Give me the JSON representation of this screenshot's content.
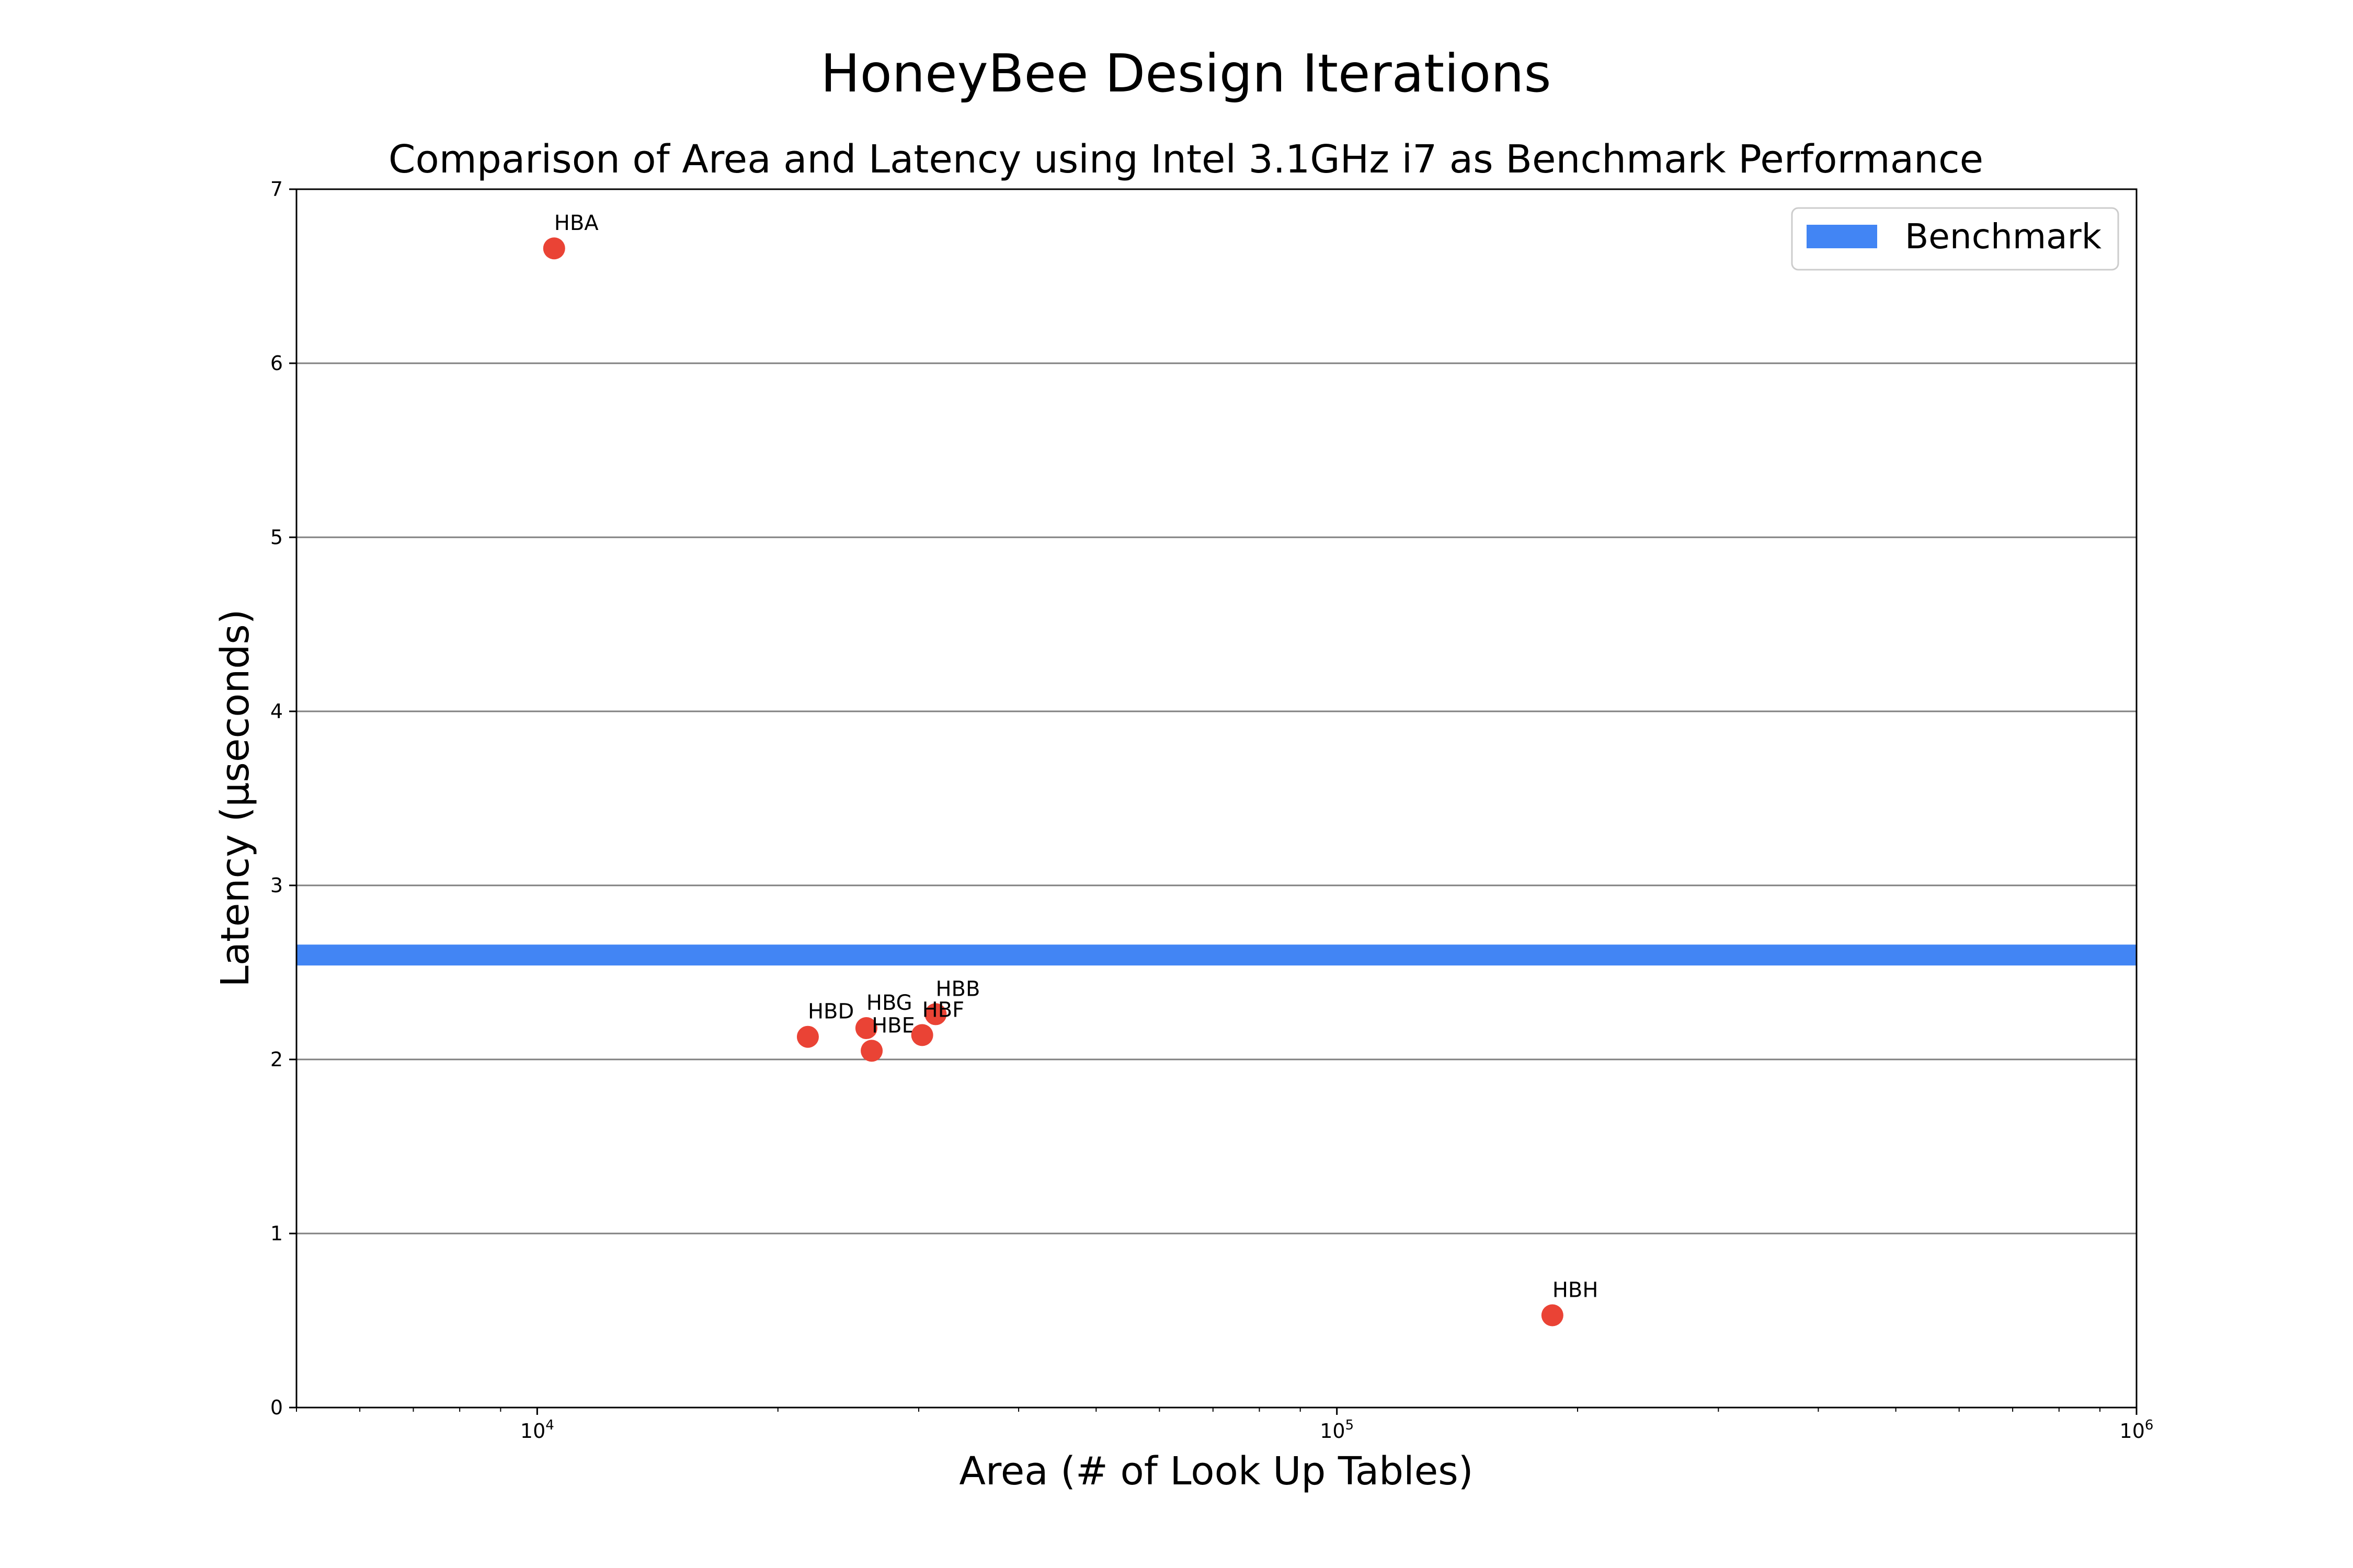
{
  "chart_data": {
    "type": "scatter",
    "title": "HoneyBee Design Iterations",
    "subtitle": "Comparison of Area and Latency using Intel 3.1GHz i7 as Benchmark Performance",
    "xlabel": "Area (# of Look Up Tables)",
    "ylabel": "Latency (μseconds)",
    "xscale": "log",
    "xlim": [
      5000,
      1000000
    ],
    "ylim": [
      0,
      7
    ],
    "xticks": [
      {
        "base": "10",
        "exp": "4",
        "value": 10000
      },
      {
        "base": "10",
        "exp": "5",
        "value": 100000
      },
      {
        "base": "10",
        "exp": "6",
        "value": 1000000
      }
    ],
    "yticks": [
      "0",
      "1",
      "2",
      "3",
      "4",
      "5",
      "6",
      "7"
    ],
    "grid": "horizontal",
    "legend": {
      "placement": "top-right",
      "entries": [
        "Benchmark"
      ]
    },
    "benchmark": {
      "name": "Benchmark",
      "y": 2.6,
      "color": "#4285f4"
    },
    "point_color": "#ea4335",
    "points": [
      {
        "label": "HBA",
        "x": 10500,
        "y": 6.66
      },
      {
        "label": "HBB",
        "x": 31500,
        "y": 2.26
      },
      {
        "label": "HBD",
        "x": 21800,
        "y": 2.13
      },
      {
        "label": "HBG",
        "x": 25800,
        "y": 2.18
      },
      {
        "label": "HBE",
        "x": 26200,
        "y": 2.05
      },
      {
        "label": "HBF",
        "x": 30300,
        "y": 2.14
      },
      {
        "label": "HBH",
        "x": 186000,
        "y": 0.53
      }
    ]
  }
}
